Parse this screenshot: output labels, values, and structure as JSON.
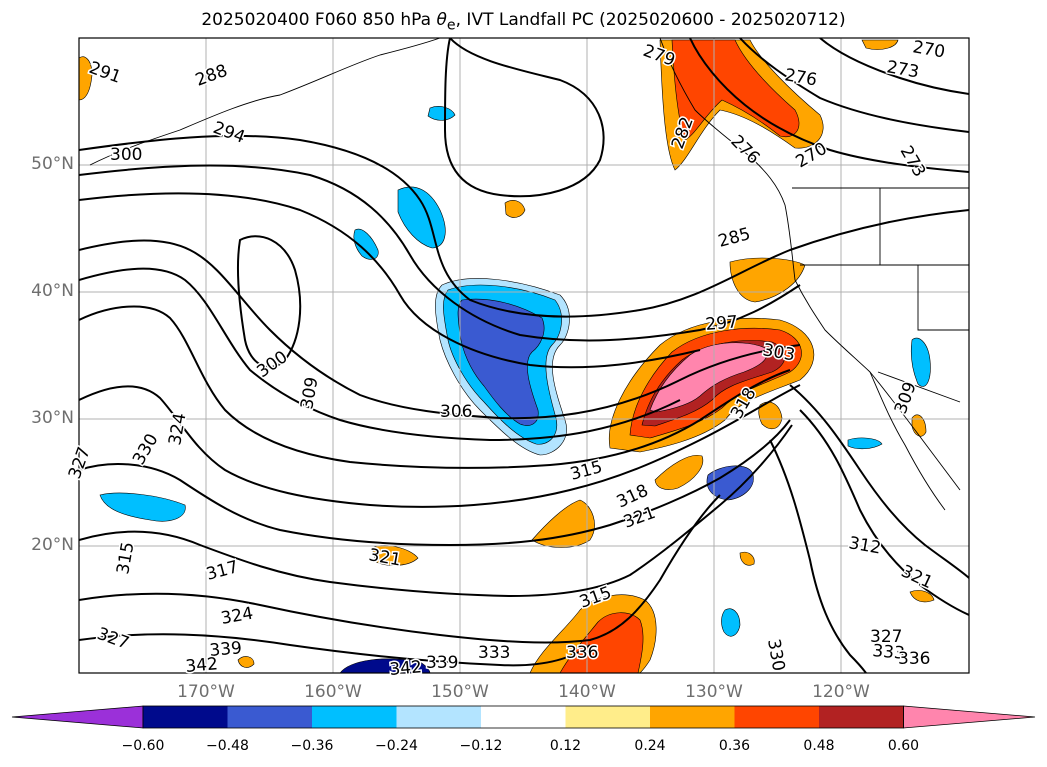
{
  "title": {
    "main": "2025020400 F060 850 hPa ",
    "theta": "θ",
    "theta_sub": "e",
    "rest": ", IVT Landfall PC (2025020600 - 2025020712)"
  },
  "lat_labels": [
    "50°N",
    "40°N",
    "30°N",
    "20°N"
  ],
  "lon_labels": [
    "170°W",
    "160°W",
    "150°W",
    "140°W",
    "130°W",
    "120°W"
  ],
  "colorbar": {
    "ticks": [
      "−0.60",
      "−0.48",
      "−0.36",
      "−0.24",
      "−0.12",
      "0.12",
      "0.24",
      "0.36",
      "0.48",
      "0.60"
    ],
    "colors": {
      "under": "#9b30d9",
      "bins": [
        "#000a8c",
        "#3a5ad1",
        "#00bfff",
        "#b3e4ff",
        "#ffffff",
        "#ffed8a",
        "#ffa500",
        "#ff4500",
        "#b22222"
      ],
      "over": "#ff85ad"
    }
  },
  "contour_labels": [
    {
      "text": "291"
    },
    {
      "text": "288"
    },
    {
      "text": "294"
    },
    {
      "text": "300"
    },
    {
      "text": "279"
    },
    {
      "text": "276"
    },
    {
      "text": "273"
    },
    {
      "text": "270"
    },
    {
      "text": "282"
    },
    {
      "text": "276"
    },
    {
      "text": "270"
    },
    {
      "text": "273"
    },
    {
      "text": "285"
    },
    {
      "text": "297"
    },
    {
      "text": "303"
    },
    {
      "text": "300"
    },
    {
      "text": "309"
    },
    {
      "text": "306"
    },
    {
      "text": "318"
    },
    {
      "text": "315"
    },
    {
      "text": "318"
    },
    {
      "text": "321"
    },
    {
      "text": "324"
    },
    {
      "text": "330"
    },
    {
      "text": "327"
    },
    {
      "text": "315"
    },
    {
      "text": "317"
    },
    {
      "text": "321"
    },
    {
      "text": "324"
    },
    {
      "text": "327"
    },
    {
      "text": "339"
    },
    {
      "text": "342"
    },
    {
      "text": "342"
    },
    {
      "text": "339"
    },
    {
      "text": "333"
    },
    {
      "text": "336"
    },
    {
      "text": "315"
    },
    {
      "text": "330"
    },
    {
      "text": "312"
    },
    {
      "text": "321"
    },
    {
      "text": "327"
    },
    {
      "text": "333"
    },
    {
      "text": "336"
    },
    {
      "text": "309"
    }
  ]
}
